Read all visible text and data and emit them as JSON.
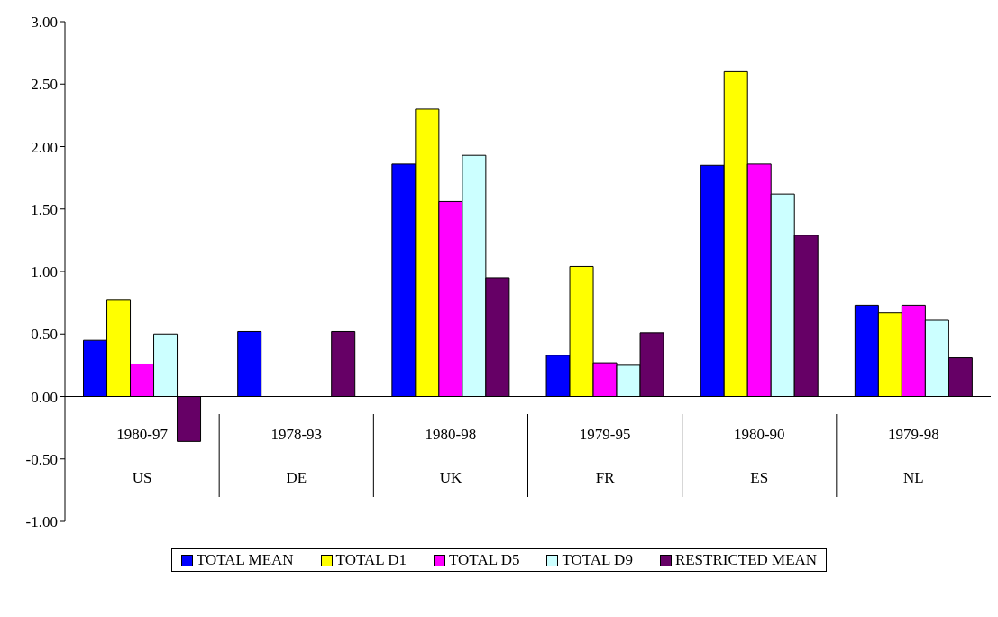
{
  "chart_data": {
    "type": "bar",
    "categories": [
      "1980-97\nUS",
      "1978-93\nDE",
      "1980-98\nUK",
      "1979-95\nFR",
      "1980-90\nES",
      "1979-98\nNL"
    ],
    "series": [
      {
        "name": "TOTAL MEAN",
        "color": "#0000ff",
        "values": [
          0.45,
          0.52,
          1.86,
          0.33,
          1.85,
          0.73
        ]
      },
      {
        "name": "TOTAL D1",
        "color": "#ffff00",
        "values": [
          0.77,
          null,
          2.3,
          1.04,
          2.6,
          0.67
        ]
      },
      {
        "name": "TOTAL D5",
        "color": "#ff00ff",
        "values": [
          0.26,
          null,
          1.56,
          0.27,
          1.86,
          0.73
        ]
      },
      {
        "name": "TOTAL D9",
        "color": "#ccffff",
        "values": [
          0.5,
          null,
          1.93,
          0.25,
          1.62,
          0.61
        ]
      },
      {
        "name": "RESTRICTED MEAN",
        "color": "#660066",
        "values": [
          -0.36,
          0.52,
          0.95,
          0.51,
          1.29,
          0.31
        ]
      }
    ],
    "ylim": [
      -1,
      3
    ],
    "yticks": [
      {
        "value": -1,
        "label": "-1.00"
      },
      {
        "value": -0.5,
        "label": "-0.50"
      },
      {
        "value": 0,
        "label": "0.00"
      },
      {
        "value": 0.5,
        "label": "0.50"
      },
      {
        "value": 1,
        "label": "1.00"
      },
      {
        "value": 1.5,
        "label": "1.50"
      },
      {
        "value": 2,
        "label": "2.00"
      },
      {
        "value": 2.5,
        "label": "2.50"
      },
      {
        "value": 3,
        "label": "3.00"
      }
    ],
    "legend": "bottom"
  }
}
